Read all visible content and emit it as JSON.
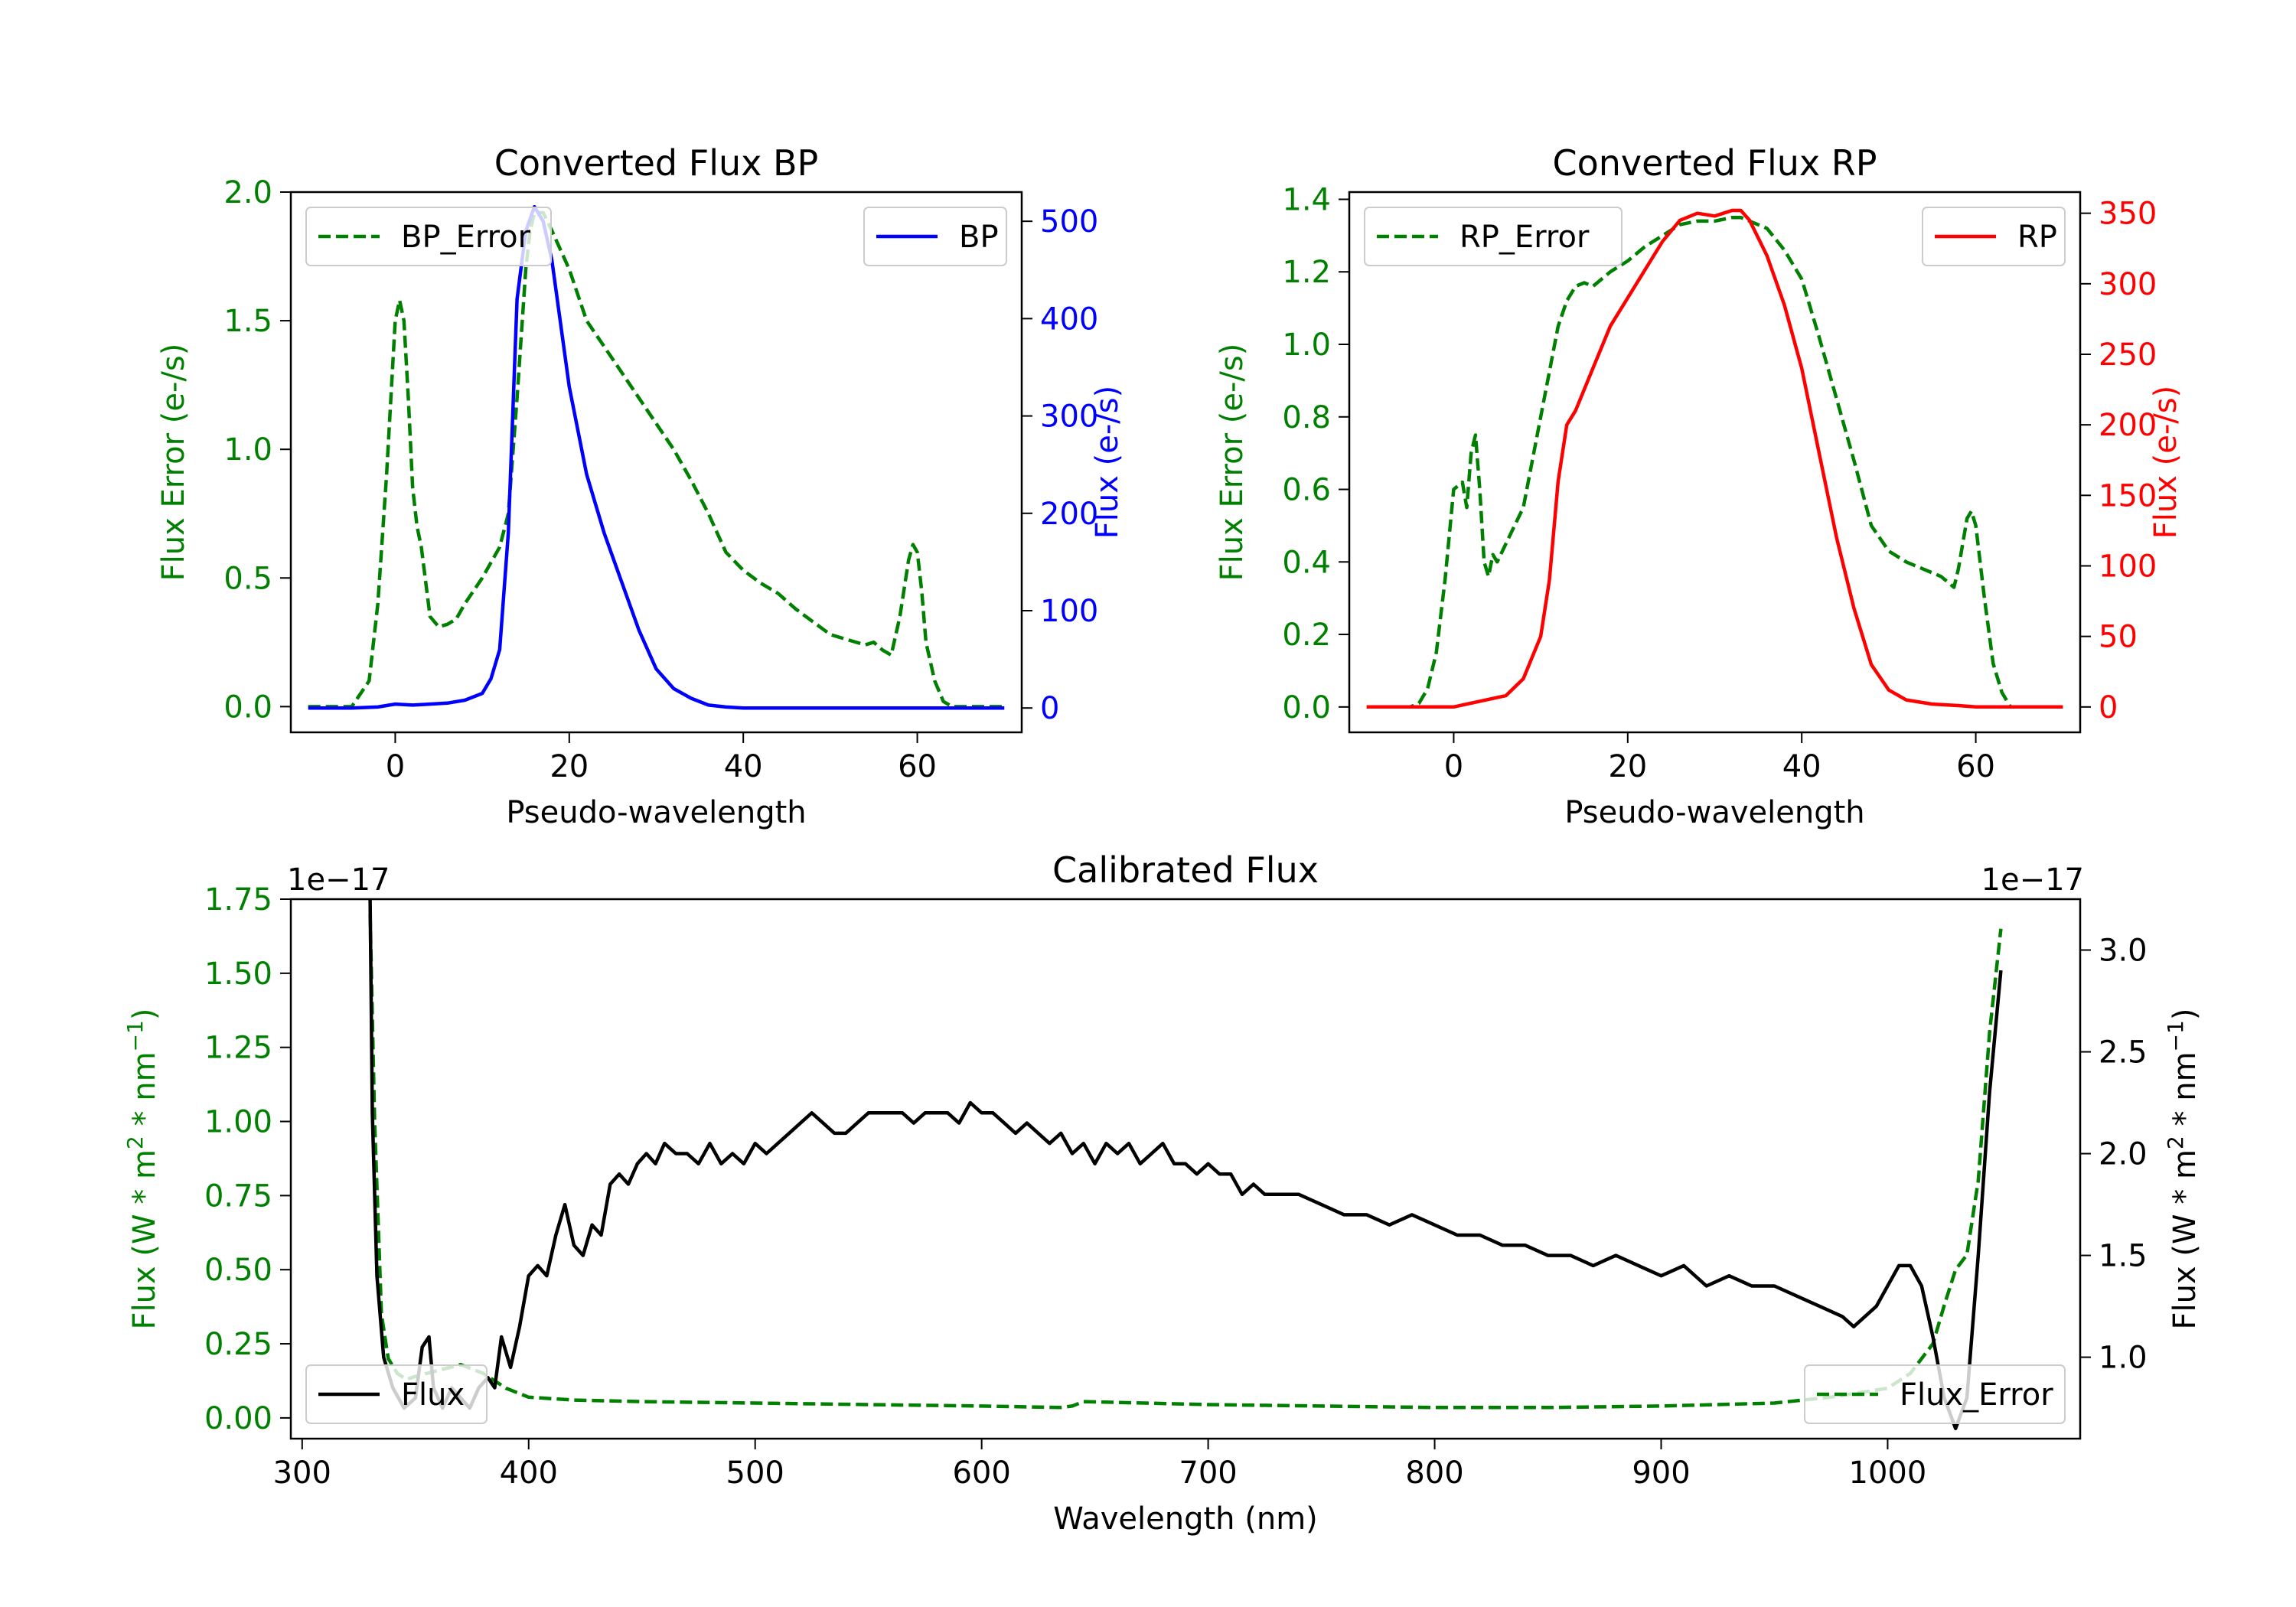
{
  "figure": {
    "background": "#ffffff"
  },
  "chart_data": [
    {
      "id": "bp",
      "type": "line",
      "title": "Converted Flux BP",
      "xlabel": "Pseudo-wavelength",
      "ylabel_left": "Flux Error (e-/s)",
      "ylabel_right": "Flux (e-/s)",
      "xlim": [
        -12,
        72
      ],
      "ylim_left": [
        -0.1,
        2.0
      ],
      "ylim_right": [
        -25,
        530
      ],
      "xticks": [
        0,
        20,
        40,
        60
      ],
      "xtick_labels": [
        "0",
        "20",
        "40",
        "60"
      ],
      "yticks_left": [
        0.0,
        0.5,
        1.0,
        1.5,
        2.0
      ],
      "ytick_labels_left": [
        "0.0",
        "0.5",
        "1.0",
        "1.5",
        "2.0"
      ],
      "yticks_right": [
        0,
        100,
        200,
        300,
        400,
        500
      ],
      "ytick_labels_right": [
        "0",
        "100",
        "200",
        "300",
        "400",
        "500"
      ],
      "left_color": "#008000",
      "right_color": "#0000ff",
      "legend_left": "BP_Error",
      "legend_right": "BP",
      "series": [
        {
          "name": "BP_Error",
          "axis": "left",
          "style": "dashed",
          "color": "#008000",
          "x": [
            -10,
            -7,
            -5,
            -3,
            -2,
            -1,
            0,
            0.5,
            1,
            1.5,
            2,
            2.5,
            3,
            4,
            5,
            6,
            7,
            8,
            10,
            12,
            13,
            14,
            15,
            15.5,
            16,
            17,
            18,
            20,
            22,
            25,
            28,
            30,
            32,
            34,
            36,
            38,
            40,
            42,
            44,
            46,
            48,
            50,
            52,
            54,
            55,
            56,
            57,
            58,
            59,
            59.5,
            60,
            60.5,
            61,
            62,
            63,
            64,
            66,
            68,
            70
          ],
          "y": [
            0,
            0,
            0,
            0.1,
            0.4,
            0.9,
            1.5,
            1.58,
            1.5,
            1.2,
            0.85,
            0.7,
            0.62,
            0.35,
            0.31,
            0.32,
            0.34,
            0.4,
            0.5,
            0.62,
            0.75,
            1.2,
            1.7,
            1.85,
            1.92,
            1.92,
            1.85,
            1.7,
            1.5,
            1.35,
            1.2,
            1.1,
            1.0,
            0.88,
            0.75,
            0.6,
            0.53,
            0.48,
            0.44,
            0.38,
            0.33,
            0.28,
            0.26,
            0.24,
            0.25,
            0.22,
            0.2,
            0.35,
            0.57,
            0.63,
            0.6,
            0.45,
            0.25,
            0.1,
            0.02,
            0,
            0,
            0,
            0
          ]
        },
        {
          "name": "BP",
          "axis": "right",
          "style": "solid",
          "color": "#0000ff",
          "x": [
            -10,
            -5,
            -2,
            0,
            2,
            4,
            6,
            8,
            10,
            11,
            12,
            13,
            14,
            15,
            16,
            17,
            18,
            20,
            22,
            24,
            26,
            28,
            30,
            32,
            34,
            36,
            38,
            40,
            45,
            50,
            55,
            60,
            65,
            70
          ],
          "y": [
            0,
            0,
            1,
            4,
            3,
            4,
            5,
            8,
            15,
            30,
            60,
            180,
            420,
            490,
            515,
            500,
            460,
            330,
            240,
            180,
            130,
            80,
            40,
            20,
            10,
            3,
            1,
            0,
            0,
            0,
            0,
            0,
            0,
            0
          ]
        }
      ]
    },
    {
      "id": "rp",
      "type": "line",
      "title": "Converted Flux RP",
      "xlabel": "Pseudo-wavelength",
      "ylabel_left": "Flux Error (e-/s)",
      "ylabel_right": "Flux (e-/s)",
      "xlim": [
        -12,
        72
      ],
      "ylim_left": [
        -0.07,
        1.42
      ],
      "ylim_right": [
        -18,
        365
      ],
      "xticks": [
        0,
        20,
        40,
        60
      ],
      "xtick_labels": [
        "0",
        "20",
        "40",
        "60"
      ],
      "yticks_left": [
        0.0,
        0.2,
        0.4,
        0.6,
        0.8,
        1.0,
        1.2,
        1.4
      ],
      "ytick_labels_left": [
        "0.0",
        "0.2",
        "0.4",
        "0.6",
        "0.8",
        "1.0",
        "1.2",
        "1.4"
      ],
      "yticks_right": [
        0,
        50,
        100,
        150,
        200,
        250,
        300,
        350
      ],
      "ytick_labels_right": [
        "0",
        "50",
        "100",
        "150",
        "200",
        "250",
        "300",
        "350"
      ],
      "left_color": "#008000",
      "right_color": "#ff0000",
      "legend_left": "RP_Error",
      "legend_right": "RP",
      "series": [
        {
          "name": "RP_Error",
          "axis": "left",
          "style": "dashed",
          "color": "#008000",
          "x": [
            -10,
            -5,
            -4,
            -3,
            -2,
            -1,
            0,
            1,
            1.5,
            2,
            2.5,
            3,
            3.5,
            4,
            4.5,
            5,
            6,
            7,
            8,
            10,
            12,
            13,
            14,
            15,
            16,
            18,
            20,
            22,
            24,
            26,
            28,
            30,
            32,
            33,
            34,
            36,
            38,
            40,
            42,
            44,
            46,
            48,
            50,
            52,
            54,
            56,
            57,
            57.5,
            58,
            59,
            59.5,
            60,
            61,
            62,
            63,
            64,
            66,
            68,
            70
          ],
          "y": [
            0,
            0,
            0.01,
            0.05,
            0.15,
            0.35,
            0.6,
            0.62,
            0.55,
            0.7,
            0.75,
            0.6,
            0.4,
            0.36,
            0.42,
            0.4,
            0.45,
            0.5,
            0.55,
            0.8,
            1.05,
            1.12,
            1.16,
            1.17,
            1.16,
            1.2,
            1.23,
            1.27,
            1.3,
            1.33,
            1.34,
            1.34,
            1.35,
            1.35,
            1.34,
            1.32,
            1.26,
            1.18,
            1.02,
            0.85,
            0.68,
            0.5,
            0.43,
            0.4,
            0.38,
            0.36,
            0.34,
            0.33,
            0.38,
            0.52,
            0.54,
            0.5,
            0.3,
            0.12,
            0.04,
            0,
            0,
            0,
            0
          ]
        },
        {
          "name": "RP",
          "axis": "right",
          "style": "solid",
          "color": "#ff0000",
          "x": [
            -10,
            -5,
            0,
            3,
            6,
            8,
            10,
            11,
            12,
            13,
            14,
            16,
            18,
            20,
            22,
            24,
            26,
            28,
            30,
            32,
            33,
            34,
            36,
            38,
            40,
            42,
            44,
            46,
            48,
            50,
            52,
            55,
            58,
            60,
            62,
            64,
            66,
            70
          ],
          "y": [
            0,
            0,
            0,
            4,
            8,
            20,
            50,
            90,
            160,
            200,
            210,
            240,
            270,
            290,
            310,
            330,
            345,
            350,
            348,
            352,
            352,
            345,
            320,
            285,
            240,
            180,
            120,
            70,
            30,
            12,
            5,
            2,
            1,
            0,
            0,
            0,
            0,
            0
          ]
        }
      ]
    },
    {
      "id": "cal",
      "type": "line",
      "title": "Calibrated Flux",
      "xlabel": "Wavelength (nm)",
      "ylabel_left": "Flux (W * m$^2$ * nm$^{-1}$)",
      "ylabel_right": "Flux (W * m$^2$ * nm$^{-1}$)",
      "ylabel_left_parts": [
        "Flux (W * m",
        "2",
        " * nm",
        "−1",
        ")"
      ],
      "ylabel_right_parts": [
        "Flux (W * m",
        "2",
        " * nm",
        "−1",
        ")"
      ],
      "offset_left": "1e−17",
      "offset_right": "1e−17",
      "xlim": [
        295,
        1085
      ],
      "ylim_left": [
        -0.07,
        1.75
      ],
      "ylim_right": [
        0.6,
        3.25
      ],
      "xticks": [
        300,
        400,
        500,
        600,
        700,
        800,
        900,
        1000
      ],
      "xtick_labels": [
        "300",
        "400",
        "500",
        "600",
        "700",
        "800",
        "900",
        "1000"
      ],
      "yticks_left": [
        0.0,
        0.25,
        0.5,
        0.75,
        1.0,
        1.25,
        1.5,
        1.75
      ],
      "ytick_labels_left": [
        "0.00",
        "0.25",
        "0.50",
        "0.75",
        "1.00",
        "1.25",
        "1.50",
        "1.75"
      ],
      "yticks_right": [
        1.0,
        1.5,
        2.0,
        2.5,
        3.0
      ],
      "ytick_labels_right": [
        "1.0",
        "1.5",
        "2.0",
        "2.5",
        "3.0"
      ],
      "left_color": "#008000",
      "right_color": "#000000",
      "legend_left": "Flux",
      "legend_right": "Flux_Error",
      "series": [
        {
          "name": "Flux_Error",
          "axis": "left",
          "style": "dashed",
          "color": "#008000",
          "x": [
            330,
            332,
            335,
            338,
            342,
            346,
            350,
            360,
            370,
            380,
            390,
            400,
            420,
            450,
            500,
            550,
            600,
            635,
            640,
            645,
            700,
            750,
            800,
            850,
            900,
            950,
            975,
            1000,
            1010,
            1020,
            1025,
            1030,
            1035,
            1040,
            1045,
            1050
          ],
          "y": [
            1.7,
            1.0,
            0.35,
            0.2,
            0.15,
            0.13,
            0.14,
            0.16,
            0.18,
            0.15,
            0.1,
            0.07,
            0.06,
            0.055,
            0.05,
            0.045,
            0.04,
            0.035,
            0.04,
            0.055,
            0.045,
            0.04,
            0.035,
            0.035,
            0.04,
            0.05,
            0.07,
            0.1,
            0.15,
            0.25,
            0.38,
            0.5,
            0.55,
            0.8,
            1.3,
            1.65
          ]
        },
        {
          "name": "Flux",
          "axis": "right",
          "style": "solid",
          "color": "#000000",
          "x": [
            330,
            331,
            333,
            336,
            340,
            345,
            350,
            353,
            356,
            358,
            362,
            366,
            370,
            374,
            378,
            382,
            385,
            388,
            392,
            396,
            400,
            404,
            408,
            412,
            416,
            420,
            424,
            428,
            432,
            436,
            440,
            444,
            448,
            452,
            456,
            460,
            465,
            470,
            475,
            480,
            485,
            490,
            495,
            500,
            505,
            510,
            515,
            520,
            525,
            530,
            535,
            540,
            545,
            550,
            555,
            560,
            565,
            570,
            575,
            580,
            585,
            590,
            595,
            600,
            605,
            610,
            615,
            620,
            625,
            630,
            635,
            640,
            645,
            650,
            655,
            660,
            665,
            670,
            675,
            680,
            685,
            690,
            695,
            700,
            705,
            710,
            715,
            720,
            725,
            730,
            740,
            750,
            760,
            770,
            780,
            790,
            800,
            810,
            820,
            830,
            840,
            850,
            860,
            870,
            880,
            890,
            900,
            910,
            920,
            930,
            940,
            950,
            960,
            970,
            980,
            985,
            990,
            995,
            1000,
            1005,
            1010,
            1015,
            1020,
            1025,
            1030,
            1035,
            1040,
            1045,
            1050
          ],
          "y": [
            3.25,
            2.2,
            1.4,
            1.0,
            0.85,
            0.75,
            0.8,
            1.05,
            1.1,
            0.85,
            0.75,
            0.85,
            0.8,
            0.75,
            0.85,
            0.9,
            0.85,
            1.1,
            0.95,
            1.15,
            1.4,
            1.45,
            1.4,
            1.6,
            1.75,
            1.55,
            1.5,
            1.65,
            1.6,
            1.85,
            1.9,
            1.85,
            1.95,
            2.0,
            1.95,
            2.05,
            2.0,
            2.0,
            1.95,
            2.05,
            1.95,
            2.0,
            1.95,
            2.05,
            2.0,
            2.05,
            2.1,
            2.15,
            2.2,
            2.15,
            2.1,
            2.1,
            2.15,
            2.2,
            2.2,
            2.2,
            2.2,
            2.15,
            2.2,
            2.2,
            2.2,
            2.15,
            2.25,
            2.2,
            2.2,
            2.15,
            2.1,
            2.15,
            2.1,
            2.05,
            2.1,
            2.0,
            2.05,
            1.95,
            2.05,
            2.0,
            2.05,
            1.95,
            2.0,
            2.05,
            1.95,
            1.95,
            1.9,
            1.95,
            1.9,
            1.9,
            1.8,
            1.85,
            1.8,
            1.8,
            1.8,
            1.75,
            1.7,
            1.7,
            1.65,
            1.7,
            1.65,
            1.6,
            1.6,
            1.55,
            1.55,
            1.5,
            1.5,
            1.45,
            1.5,
            1.45,
            1.4,
            1.45,
            1.35,
            1.4,
            1.35,
            1.35,
            1.3,
            1.25,
            1.2,
            1.15,
            1.2,
            1.25,
            1.35,
            1.45,
            1.45,
            1.35,
            1.1,
            0.8,
            0.65,
            0.8,
            1.5,
            2.3,
            2.9
          ]
        }
      ]
    }
  ]
}
